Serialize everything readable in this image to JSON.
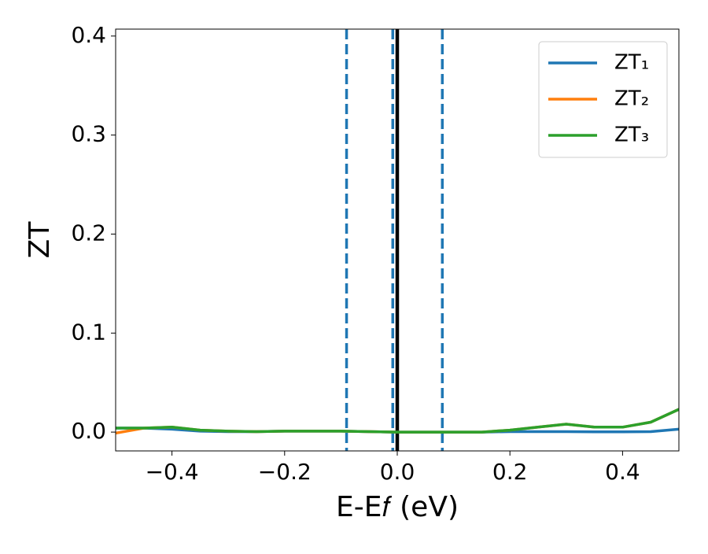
{
  "chart_data": {
    "type": "line",
    "xlabel": "E-E𝑓 (eV)",
    "ylabel": "ZT",
    "x": [
      -0.5,
      -0.45,
      -0.4,
      -0.35,
      -0.3,
      -0.25,
      -0.2,
      -0.15,
      -0.1,
      -0.05,
      0,
      0.05,
      0.1,
      0.15,
      0.2,
      0.25,
      0.3,
      0.35,
      0.4,
      0.45,
      0.5
    ],
    "series": [
      {
        "name": "ZT₁",
        "color": "#1f77b4",
        "values": [
          0.004,
          0.004,
          0.003,
          0.001,
          0.0005,
          0.0005,
          0.001,
          0.001,
          0.001,
          0.0005,
          0,
          0,
          0,
          0,
          0.0005,
          0.0005,
          0.0005,
          0.0003,
          0.0003,
          0.0005,
          0.003
        ]
      },
      {
        "name": "ZT₂",
        "color": "#ff7f0e",
        "values": [
          -0.001,
          0.004,
          0.005,
          0.002,
          0.001,
          0.0005,
          0.001,
          0.001,
          0.001,
          0.0005,
          0,
          0,
          0,
          0,
          0.002,
          0.005,
          0.008,
          0.005,
          0.005,
          0.01,
          0.023
        ]
      },
      {
        "name": "ZT₃",
        "color": "#2ca02c",
        "values": [
          0.004,
          0.004,
          0.005,
          0.002,
          0.001,
          0.0005,
          0.001,
          0.001,
          0.001,
          0.0005,
          0,
          0,
          0,
          0,
          0.002,
          0.005,
          0.008,
          0.005,
          0.005,
          0.01,
          0.023
        ]
      }
    ],
    "vlines": [
      {
        "x": -0.09,
        "color": "#1f77b4",
        "style": "dashed"
      },
      {
        "x": -0.008,
        "color": "#1f77b4",
        "style": "dashed"
      },
      {
        "x": 0.08,
        "color": "#1f77b4",
        "style": "dashed"
      },
      {
        "x": 0,
        "color": "#000000",
        "style": "solid"
      }
    ],
    "xlim": [
      -0.5,
      0.5
    ],
    "xticks": [
      {
        "value": -0.4,
        "label": "−0.4"
      },
      {
        "value": -0.2,
        "label": "−0.2"
      },
      {
        "value": 0,
        "label": "0.0"
      },
      0.2,
      0.4
    ],
    "ylim": [
      -0.019,
      0.407
    ],
    "yticks": [
      {
        "value": 0,
        "label": "0.0"
      },
      0.1,
      0.2,
      0.3,
      0.4
    ],
    "grid": false,
    "legend": "upper right"
  }
}
